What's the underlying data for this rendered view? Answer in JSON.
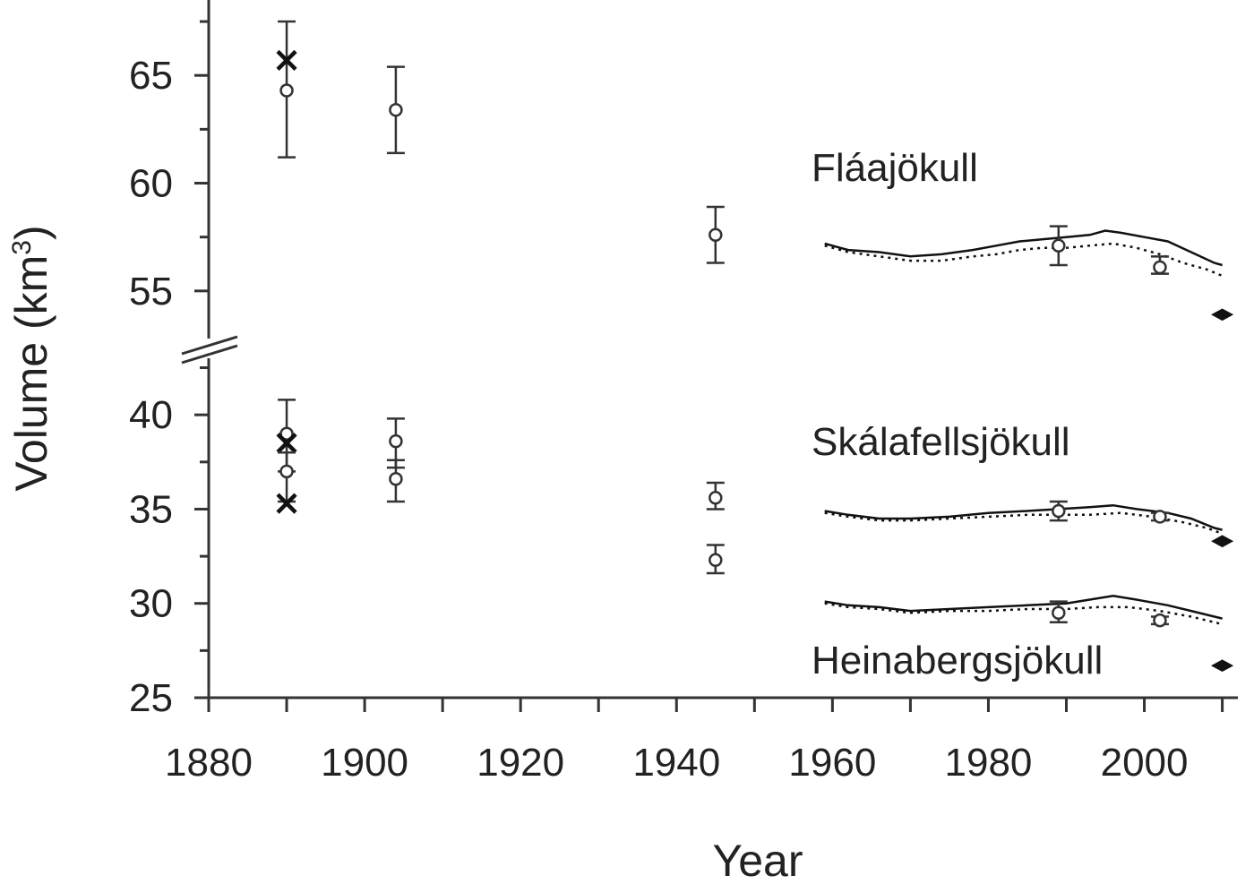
{
  "chart_data": {
    "type": "scatter",
    "xlabel": "Year",
    "ylabel": "Volume (km",
    "ylabel_superscript": "3",
    "ylabel_close": ")",
    "xlim": [
      1880,
      2012
    ],
    "ylim_upper": [
      52.5,
      68
    ],
    "ylim_lower": [
      25,
      43
    ],
    "axis_break": true,
    "x_ticks": [
      1880,
      1900,
      1920,
      1940,
      1960,
      1980,
      2000
    ],
    "y_ticks_upper": [
      55,
      60,
      65
    ],
    "y_ticks_lower": [
      25,
      30,
      35,
      40
    ],
    "glaciers": [
      {
        "label": "Fláajökull",
        "panel": "upper",
        "model_solid": [
          [
            1959,
            57.2
          ],
          [
            1962,
            56.9
          ],
          [
            1966,
            56.8
          ],
          [
            1970,
            56.6
          ],
          [
            1974,
            56.7
          ],
          [
            1978,
            56.9
          ],
          [
            1981,
            57.1
          ],
          [
            1984,
            57.3
          ],
          [
            1987,
            57.4
          ],
          [
            1990,
            57.5
          ],
          [
            1993,
            57.6
          ],
          [
            1995,
            57.8
          ],
          [
            1997,
            57.7
          ],
          [
            2000,
            57.5
          ],
          [
            2003,
            57.3
          ],
          [
            2006,
            56.8
          ],
          [
            2009,
            56.3
          ],
          [
            2010,
            56.2
          ]
        ],
        "model_dotted": [
          [
            1959,
            57.1
          ],
          [
            1962,
            56.8
          ],
          [
            1966,
            56.6
          ],
          [
            1970,
            56.4
          ],
          [
            1974,
            56.4
          ],
          [
            1978,
            56.6
          ],
          [
            1981,
            56.7
          ],
          [
            1984,
            56.9
          ],
          [
            1987,
            57.0
          ],
          [
            1990,
            57.0
          ],
          [
            1993,
            57.1
          ],
          [
            1996,
            57.2
          ],
          [
            1999,
            57.0
          ],
          [
            2002,
            56.7
          ],
          [
            2005,
            56.3
          ],
          [
            2008,
            56.0
          ],
          [
            2010,
            55.7
          ]
        ],
        "observations": [
          {
            "year": 1890,
            "value": 64.3,
            "err_low": 61.2,
            "err_high": 67.5,
            "marker": "circle"
          },
          {
            "year": 1890,
            "value": 65.7,
            "marker": "cross"
          },
          {
            "year": 1904,
            "value": 63.4,
            "err_low": 61.4,
            "err_high": 65.4,
            "marker": "circle"
          },
          {
            "year": 1945,
            "value": 57.6,
            "err_low": 56.3,
            "err_high": 58.9,
            "marker": "circle"
          },
          {
            "year": 1989,
            "value": 57.1,
            "err_low": 56.2,
            "err_high": 58.0,
            "marker": "circle"
          },
          {
            "year": 2002,
            "value": 56.1,
            "err_low": 55.8,
            "err_high": 56.6,
            "marker": "circle"
          },
          {
            "year": 2010,
            "value": 53.9,
            "marker": "diamond"
          }
        ]
      },
      {
        "label": "Skálafellsjökull",
        "panel": "lower",
        "model_solid": [
          [
            1959,
            34.9
          ],
          [
            1962,
            34.7
          ],
          [
            1966,
            34.5
          ],
          [
            1970,
            34.5
          ],
          [
            1975,
            34.6
          ],
          [
            1980,
            34.8
          ],
          [
            1985,
            34.9
          ],
          [
            1989,
            35.0
          ],
          [
            1993,
            35.1
          ],
          [
            1996,
            35.2
          ],
          [
            1999,
            35.0
          ],
          [
            2003,
            34.8
          ],
          [
            2006,
            34.5
          ],
          [
            2009,
            34.0
          ],
          [
            2010,
            33.9
          ]
        ],
        "model_dotted": [
          [
            1959,
            34.8
          ],
          [
            1962,
            34.6
          ],
          [
            1966,
            34.4
          ],
          [
            1970,
            34.4
          ],
          [
            1975,
            34.5
          ],
          [
            1980,
            34.6
          ],
          [
            1985,
            34.7
          ],
          [
            1989,
            34.7
          ],
          [
            1993,
            34.7
          ],
          [
            1997,
            34.8
          ],
          [
            2001,
            34.6
          ],
          [
            2005,
            34.3
          ],
          [
            2008,
            34.0
          ],
          [
            2010,
            33.7
          ]
        ],
        "observations": [
          {
            "year": 1890,
            "value": 39.0,
            "err_low": 37.0,
            "err_high": 40.8,
            "marker": "circle"
          },
          {
            "year": 1890,
            "value": 38.5,
            "marker": "cross"
          },
          {
            "year": 1904,
            "value": 38.6,
            "err_low": 37.2,
            "err_high": 39.8,
            "marker": "circle"
          },
          {
            "year": 1945,
            "value": 35.6,
            "err_low": 35.0,
            "err_high": 36.4,
            "marker": "circle"
          },
          {
            "year": 1989,
            "value": 34.9,
            "err_low": 34.4,
            "err_high": 35.4,
            "marker": "circle"
          },
          {
            "year": 2002,
            "value": 34.6,
            "err_low": 34.4,
            "err_high": 34.8,
            "marker": "circle"
          },
          {
            "year": 2010,
            "value": 33.3,
            "marker": "diamond"
          }
        ]
      },
      {
        "label": "Heinabergsjökull",
        "panel": "lower",
        "model_solid": [
          [
            1959,
            30.1
          ],
          [
            1962,
            29.9
          ],
          [
            1966,
            29.8
          ],
          [
            1970,
            29.6
          ],
          [
            1975,
            29.7
          ],
          [
            1980,
            29.8
          ],
          [
            1985,
            29.9
          ],
          [
            1990,
            30.0
          ],
          [
            1993,
            30.2
          ],
          [
            1996,
            30.4
          ],
          [
            1999,
            30.2
          ],
          [
            2003,
            29.9
          ],
          [
            2006,
            29.6
          ],
          [
            2009,
            29.3
          ],
          [
            2010,
            29.2
          ]
        ],
        "model_dotted": [
          [
            1959,
            30.0
          ],
          [
            1962,
            29.8
          ],
          [
            1966,
            29.7
          ],
          [
            1970,
            29.5
          ],
          [
            1975,
            29.6
          ],
          [
            1980,
            29.6
          ],
          [
            1985,
            29.7
          ],
          [
            1990,
            29.7
          ],
          [
            1994,
            29.8
          ],
          [
            1998,
            29.8
          ],
          [
            2002,
            29.6
          ],
          [
            2006,
            29.3
          ],
          [
            2009,
            29.0
          ],
          [
            2010,
            28.9
          ]
        ],
        "observations": [
          {
            "year": 1890,
            "value": 37.0,
            "err_low": 35.4,
            "err_high": 38.0,
            "marker": "circle"
          },
          {
            "year": 1890,
            "value": 35.3,
            "marker": "cross"
          },
          {
            "year": 1904,
            "value": 36.6,
            "err_low": 35.4,
            "err_high": 37.6,
            "marker": "circle"
          },
          {
            "year": 1945,
            "value": 32.3,
            "err_low": 31.6,
            "err_high": 33.1,
            "marker": "circle"
          },
          {
            "year": 1989,
            "value": 29.5,
            "err_low": 29.0,
            "err_high": 30.1,
            "marker": "circle"
          },
          {
            "year": 2002,
            "value": 29.1,
            "err_low": 28.9,
            "err_high": 29.3,
            "marker": "circle"
          },
          {
            "year": 2010,
            "value": 26.7,
            "marker": "diamond"
          }
        ]
      }
    ]
  }
}
